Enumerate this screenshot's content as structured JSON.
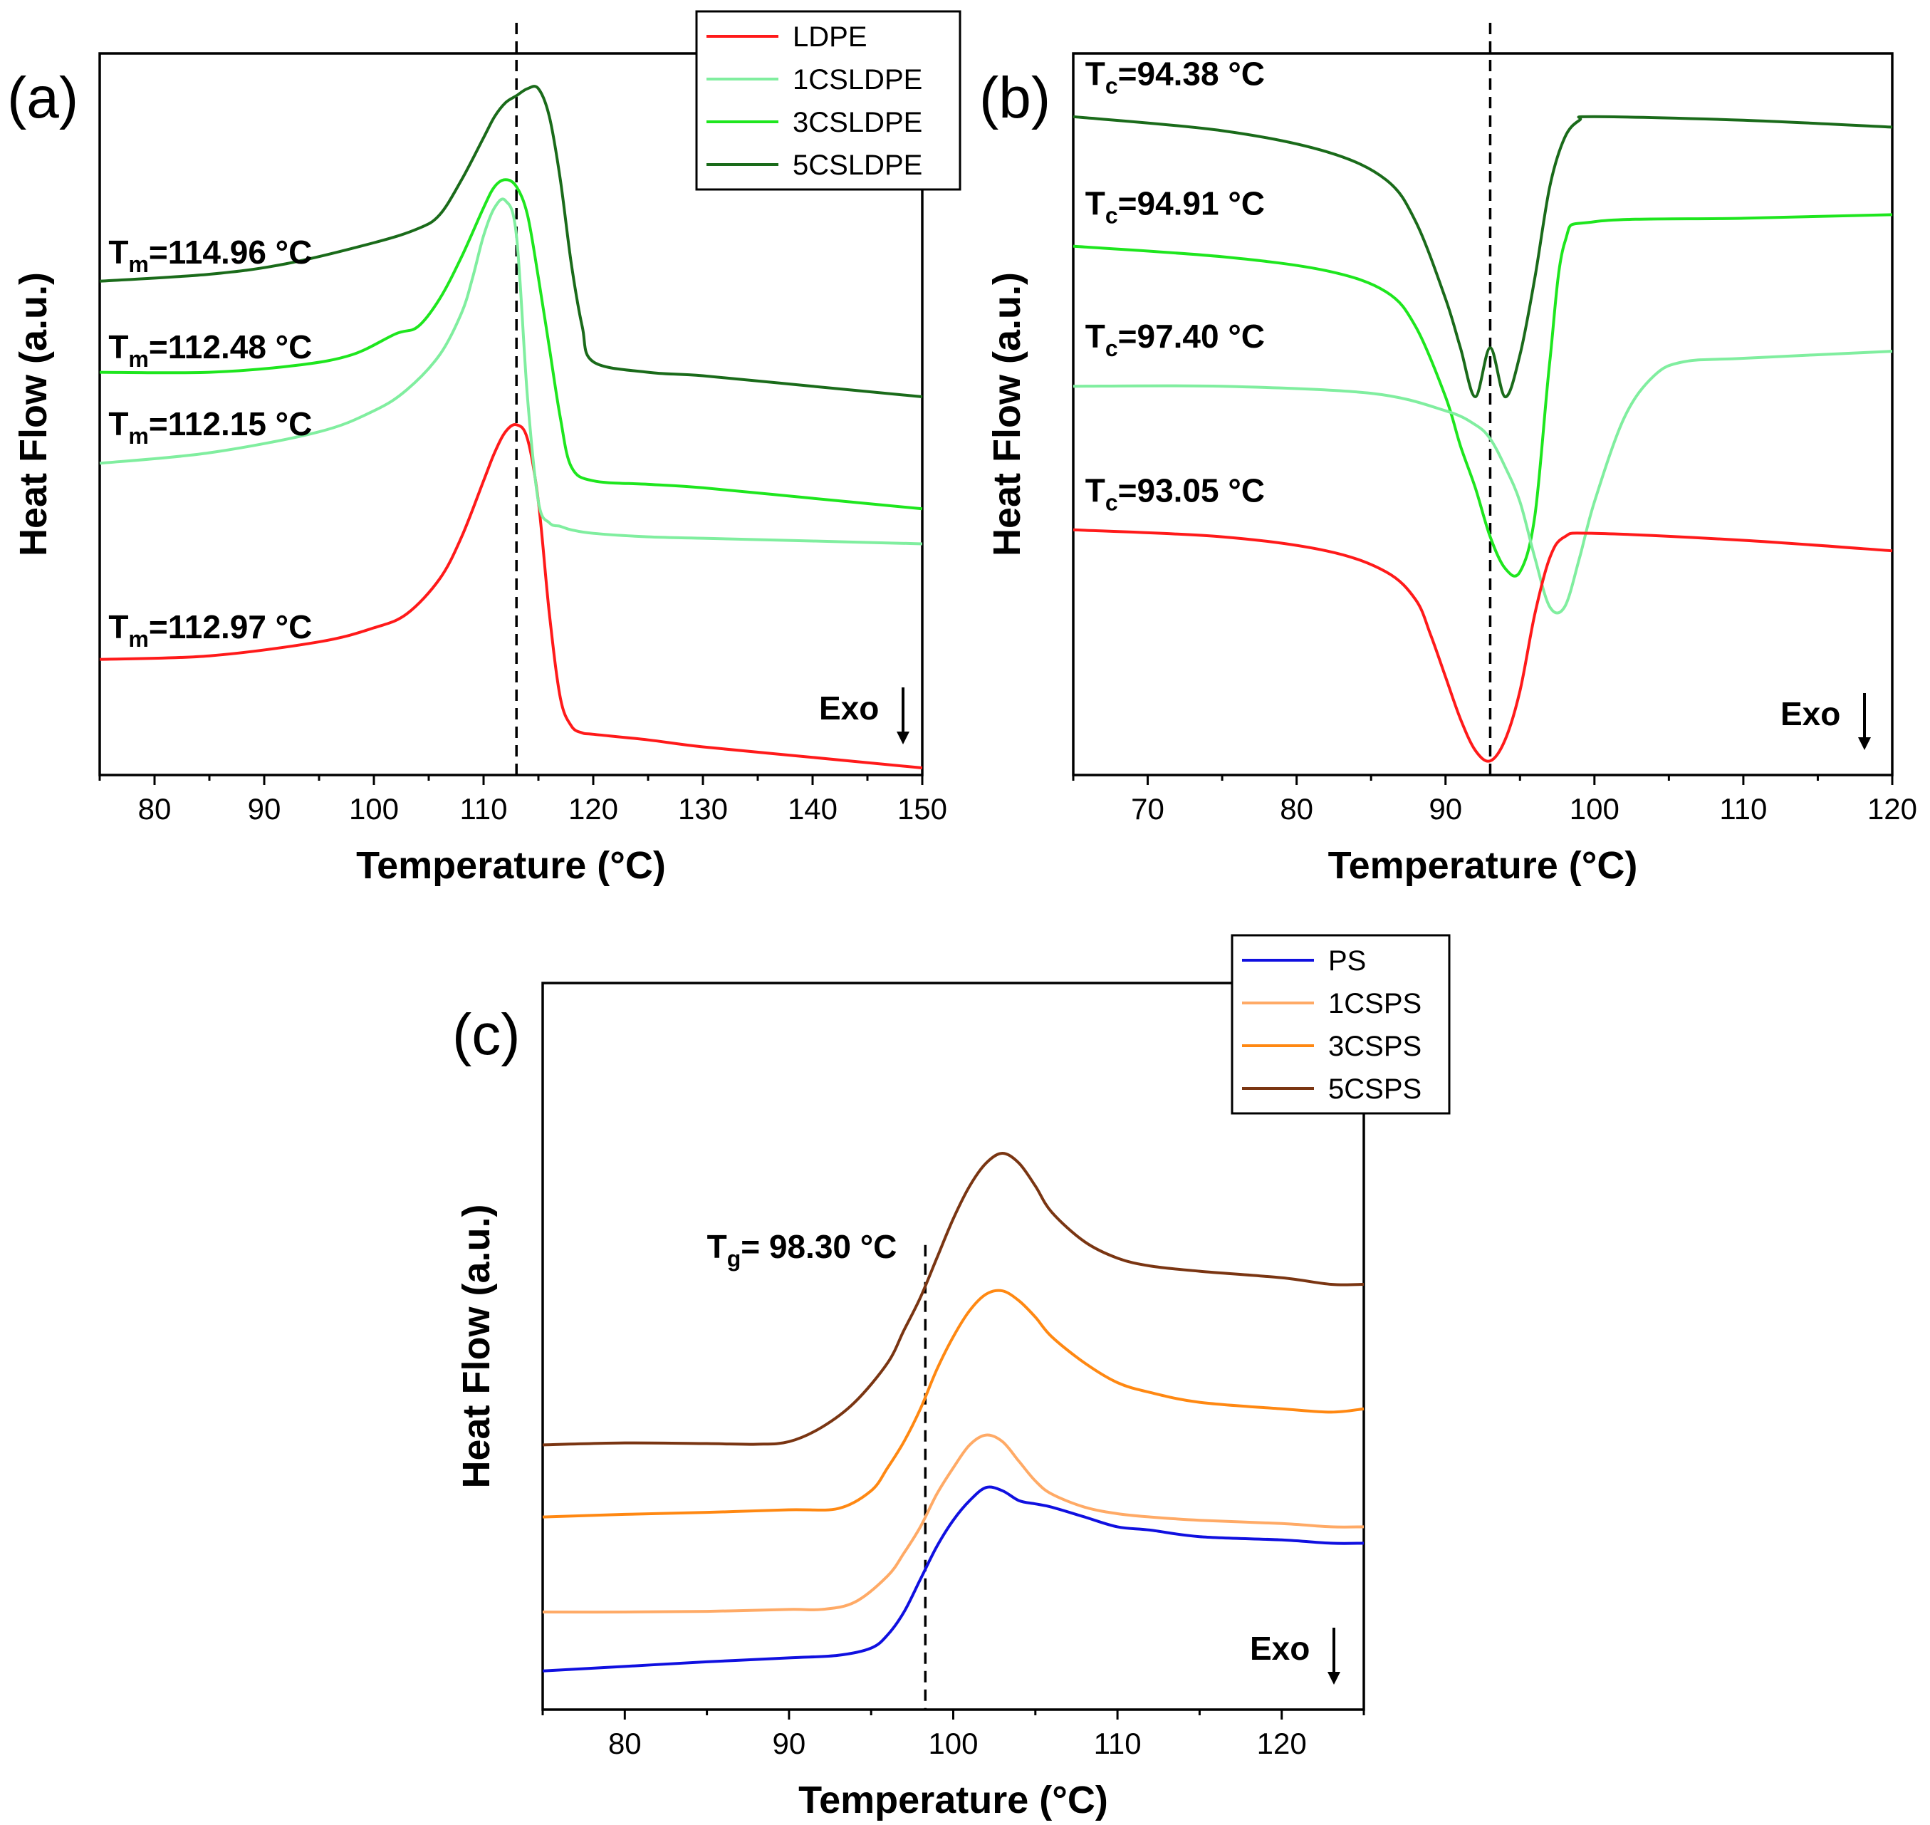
{
  "chart_data": [
    {
      "id": "a",
      "type": "line",
      "panel_label": "(a)",
      "xlabel": "Temperature (°C)",
      "ylabel": "Heat Flow (a.u.)",
      "xlim": [
        75,
        150
      ],
      "xticks": [
        80,
        90,
        100,
        110,
        120,
        130,
        140,
        150
      ],
      "ylim": [
        0,
        1
      ],
      "y_ticks_shown": false,
      "legend_position": "top-right",
      "reference_line_x": 113,
      "exo_label": "Exo",
      "series": [
        {
          "name": "LDPE",
          "color": "#ff1a1a",
          "x": [
            75,
            85,
            95,
            100,
            103,
            106,
            108,
            110,
            111,
            112,
            113,
            114,
            115,
            116,
            117,
            118,
            119,
            120,
            125,
            130,
            140,
            150
          ],
          "y": [
            0.155,
            0.16,
            0.18,
            0.2,
            0.22,
            0.27,
            0.33,
            0.41,
            0.45,
            0.48,
            0.49,
            0.47,
            0.38,
            0.22,
            0.1,
            0.06,
            0.05,
            0.048,
            0.04,
            0.03,
            0.015,
            0.0
          ]
        },
        {
          "name": "1CSLDPE",
          "color": "#80ee9f",
          "x": [
            75,
            85,
            95,
            100,
            103,
            106,
            108,
            109,
            110,
            111,
            112,
            113,
            114,
            115,
            116,
            117,
            118,
            120,
            125,
            130,
            140,
            150
          ],
          "y": [
            0.435,
            0.45,
            0.48,
            0.51,
            0.54,
            0.59,
            0.65,
            0.7,
            0.76,
            0.8,
            0.81,
            0.76,
            0.53,
            0.38,
            0.35,
            0.345,
            0.34,
            0.335,
            0.33,
            0.328,
            0.324,
            0.32
          ]
        },
        {
          "name": "3CSLDPE",
          "color": "#1ee61e",
          "x": [
            75,
            85,
            93,
            98,
            102,
            104,
            106,
            108,
            110,
            111,
            112,
            113,
            114,
            115,
            116,
            117,
            118,
            120,
            125,
            130,
            140,
            150
          ],
          "y": [
            0.565,
            0.565,
            0.575,
            0.59,
            0.62,
            0.63,
            0.67,
            0.73,
            0.8,
            0.83,
            0.84,
            0.83,
            0.79,
            0.7,
            0.6,
            0.5,
            0.43,
            0.41,
            0.405,
            0.4,
            0.385,
            0.37
          ]
        },
        {
          "name": "5CSLDPE",
          "color": "#1a6b1a",
          "x": [
            75,
            85,
            92,
            100,
            104,
            106,
            108,
            110,
            111,
            112,
            113,
            114,
            115,
            116,
            117,
            118,
            119,
            120,
            125,
            130,
            140,
            150
          ],
          "y": [
            0.695,
            0.705,
            0.72,
            0.75,
            0.77,
            0.79,
            0.84,
            0.9,
            0.93,
            0.95,
            0.96,
            0.97,
            0.97,
            0.93,
            0.84,
            0.72,
            0.63,
            0.58,
            0.565,
            0.56,
            0.545,
            0.53
          ]
        }
      ],
      "annotations": [
        {
          "base": "T",
          "sub": "m",
          "rest": "=114.96 °C",
          "x": 75.8,
          "y": 0.72
        },
        {
          "base": "T",
          "sub": "m",
          "rest": "=112.48 °C",
          "x": 75.8,
          "y": 0.585
        },
        {
          "base": "T",
          "sub": "m",
          "rest": "=112.15 °C",
          "x": 75.8,
          "y": 0.475
        },
        {
          "base": "T",
          "sub": "m",
          "rest": "=112.97 °C",
          "x": 75.8,
          "y": 0.185
        }
      ]
    },
    {
      "id": "b",
      "type": "line",
      "panel_label": "(b)",
      "xlabel": "Temperature (°C)",
      "ylabel": "Heat Flow (a.u.)",
      "xlim": [
        65,
        120
      ],
      "xticks": [
        70,
        80,
        90,
        100,
        110,
        120
      ],
      "ylim": [
        0,
        1
      ],
      "y_ticks_shown": false,
      "reference_line_x": 93,
      "exo_label": "Exo",
      "series": [
        {
          "name": "5CSLDPE",
          "color": "#1a6b1a",
          "x": [
            65,
            75,
            82,
            86,
            88,
            90,
            91,
            92,
            93,
            94,
            95,
            96,
            97,
            98,
            99,
            100,
            110,
            120
          ],
          "y": [
            0.93,
            0.91,
            0.88,
            0.84,
            0.78,
            0.67,
            0.6,
            0.53,
            0.6,
            0.53,
            0.59,
            0.7,
            0.83,
            0.9,
            0.925,
            0.93,
            0.925,
            0.915
          ]
        },
        {
          "name": "3CSLDPE",
          "color": "#1ee61e",
          "x": [
            65,
            75,
            82,
            86,
            88,
            90,
            91,
            92,
            93,
            94,
            95,
            96,
            97,
            98,
            100,
            110,
            120
          ],
          "y": [
            0.745,
            0.73,
            0.71,
            0.68,
            0.63,
            0.53,
            0.46,
            0.4,
            0.33,
            0.285,
            0.28,
            0.36,
            0.58,
            0.75,
            0.78,
            0.785,
            0.79
          ]
        },
        {
          "name": "1CSLDPE",
          "color": "#80ee9f",
          "x": [
            65,
            75,
            85,
            90,
            92,
            93,
            94,
            95,
            96,
            97,
            98,
            99,
            100,
            102,
            104,
            106,
            110,
            120
          ],
          "y": [
            0.545,
            0.545,
            0.535,
            0.51,
            0.49,
            0.47,
            0.43,
            0.38,
            0.3,
            0.23,
            0.23,
            0.3,
            0.38,
            0.5,
            0.56,
            0.58,
            0.585,
            0.595
          ]
        },
        {
          "name": "LDPE",
          "color": "#ff1a1a",
          "x": [
            65,
            75,
            82,
            86,
            88,
            89,
            90,
            91,
            92,
            93,
            94,
            95,
            96,
            97,
            98,
            100,
            110,
            120
          ],
          "y": [
            0.34,
            0.33,
            0.31,
            0.28,
            0.24,
            0.19,
            0.13,
            0.07,
            0.025,
            0.01,
            0.04,
            0.11,
            0.22,
            0.3,
            0.33,
            0.335,
            0.325,
            0.31
          ]
        }
      ],
      "annotations": [
        {
          "base": "T",
          "sub": "c",
          "rest": "=94.38 °C",
          "x": 65.8,
          "y": 0.975
        },
        {
          "base": "T",
          "sub": "c",
          "rest": "=94.91 °C",
          "x": 65.8,
          "y": 0.79
        },
        {
          "base": "T",
          "sub": "c",
          "rest": "=97.40 °C",
          "x": 65.8,
          "y": 0.6
        },
        {
          "base": "T",
          "sub": "c",
          "rest": "=93.05 °C",
          "x": 65.8,
          "y": 0.38
        }
      ]
    },
    {
      "id": "c",
      "type": "line",
      "panel_label": "(c)",
      "xlabel": "Temperature (°C)",
      "ylabel": "Heat Flow (a.u.)",
      "xlim": [
        75,
        125
      ],
      "xticks": [
        80,
        90,
        100,
        110,
        120
      ],
      "ylim": [
        0,
        1
      ],
      "y_ticks_shown": false,
      "legend_position": "top-right",
      "reference_line_x": 98.3,
      "exo_label": "Exo",
      "series": [
        {
          "name": "PS",
          "color": "#1010e0",
          "x": [
            75,
            80,
            85,
            90,
            93,
            95,
            96,
            97,
            98,
            99,
            100,
            101,
            102,
            103,
            104,
            105,
            106,
            108,
            110,
            112,
            115,
            120,
            123,
            125
          ],
          "y": [
            0.01,
            0.017,
            0.024,
            0.03,
            0.034,
            0.045,
            0.065,
            0.1,
            0.15,
            0.2,
            0.24,
            0.27,
            0.29,
            0.285,
            0.27,
            0.265,
            0.26,
            0.245,
            0.23,
            0.225,
            0.215,
            0.21,
            0.205,
            0.205
          ]
        },
        {
          "name": "1CSPS",
          "color": "#ffaa66",
          "x": [
            75,
            80,
            85,
            90,
            92,
            94,
            96,
            97,
            98,
            99,
            100,
            101,
            102,
            103,
            104,
            105,
            106,
            108,
            110,
            112,
            115,
            120,
            123,
            125
          ],
          "y": [
            0.1,
            0.1,
            0.101,
            0.104,
            0.104,
            0.115,
            0.155,
            0.19,
            0.23,
            0.28,
            0.32,
            0.355,
            0.37,
            0.36,
            0.33,
            0.3,
            0.28,
            0.26,
            0.25,
            0.245,
            0.24,
            0.235,
            0.23,
            0.23
          ]
        },
        {
          "name": "3CSPS",
          "color": "#ff8812",
          "x": [
            75,
            80,
            85,
            90,
            93,
            95,
            96,
            97,
            98,
            99,
            100,
            101,
            102,
            103,
            104,
            105,
            106,
            108,
            110,
            112,
            115,
            120,
            123,
            125
          ],
          "y": [
            0.245,
            0.249,
            0.252,
            0.256,
            0.258,
            0.285,
            0.32,
            0.36,
            0.41,
            0.47,
            0.52,
            0.56,
            0.585,
            0.59,
            0.575,
            0.55,
            0.52,
            0.48,
            0.45,
            0.435,
            0.42,
            0.41,
            0.405,
            0.41
          ]
        },
        {
          "name": "5CSPS",
          "color": "#7a3512",
          "x": [
            75,
            80,
            85,
            88,
            90,
            92,
            94,
            96,
            97,
            98,
            99,
            100,
            101,
            102,
            103,
            104,
            105,
            106,
            108,
            110,
            112,
            115,
            120,
            123,
            125
          ],
          "y": [
            0.355,
            0.358,
            0.357,
            0.356,
            0.36,
            0.382,
            0.42,
            0.48,
            0.53,
            0.58,
            0.64,
            0.7,
            0.75,
            0.785,
            0.8,
            0.785,
            0.75,
            0.71,
            0.665,
            0.64,
            0.628,
            0.62,
            0.61,
            0.6,
            0.6
          ]
        }
      ],
      "annotations": [
        {
          "base": "T",
          "sub": "g",
          "rest": "= 98.30 °C",
          "x": 85.0,
          "y": 0.64
        }
      ]
    }
  ]
}
